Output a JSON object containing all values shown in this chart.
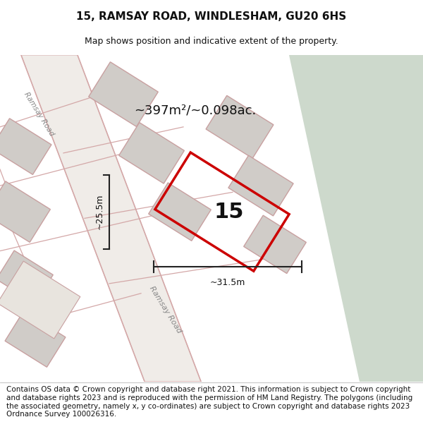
{
  "title": "15, RAMSAY ROAD, WINDLESHAM, GU20 6HS",
  "subtitle": "Map shows position and indicative extent of the property.",
  "footer": "Contains OS data © Crown copyright and database right 2021. This information is subject to Crown copyright and database rights 2023 and is reproduced with the permission of HM Land Registry. The polygons (including the associated geometry, namely x, y co-ordinates) are subject to Crown copyright and database rights 2023 Ordnance Survey 100026316.",
  "area_label": "~397m²/~0.098ac.",
  "width_label": "~31.5m",
  "height_label": "~25.5m",
  "property_number": "15",
  "road_label": "Ramsay Road",
  "road_label2": "Ramsay Road",
  "map_bg": "#f0ece6",
  "green_area_color": "#cdd9cc",
  "road_color": "#e8e0d8",
  "road_edge_color": "#d4a8a8",
  "building_fill": "#d0ccc8",
  "building_stroke": "#c8a0a0",
  "property_stroke": "#cc0000",
  "dim_line_color": "#222222",
  "title_fontsize": 11,
  "subtitle_fontsize": 9,
  "footer_fontsize": 7.5
}
